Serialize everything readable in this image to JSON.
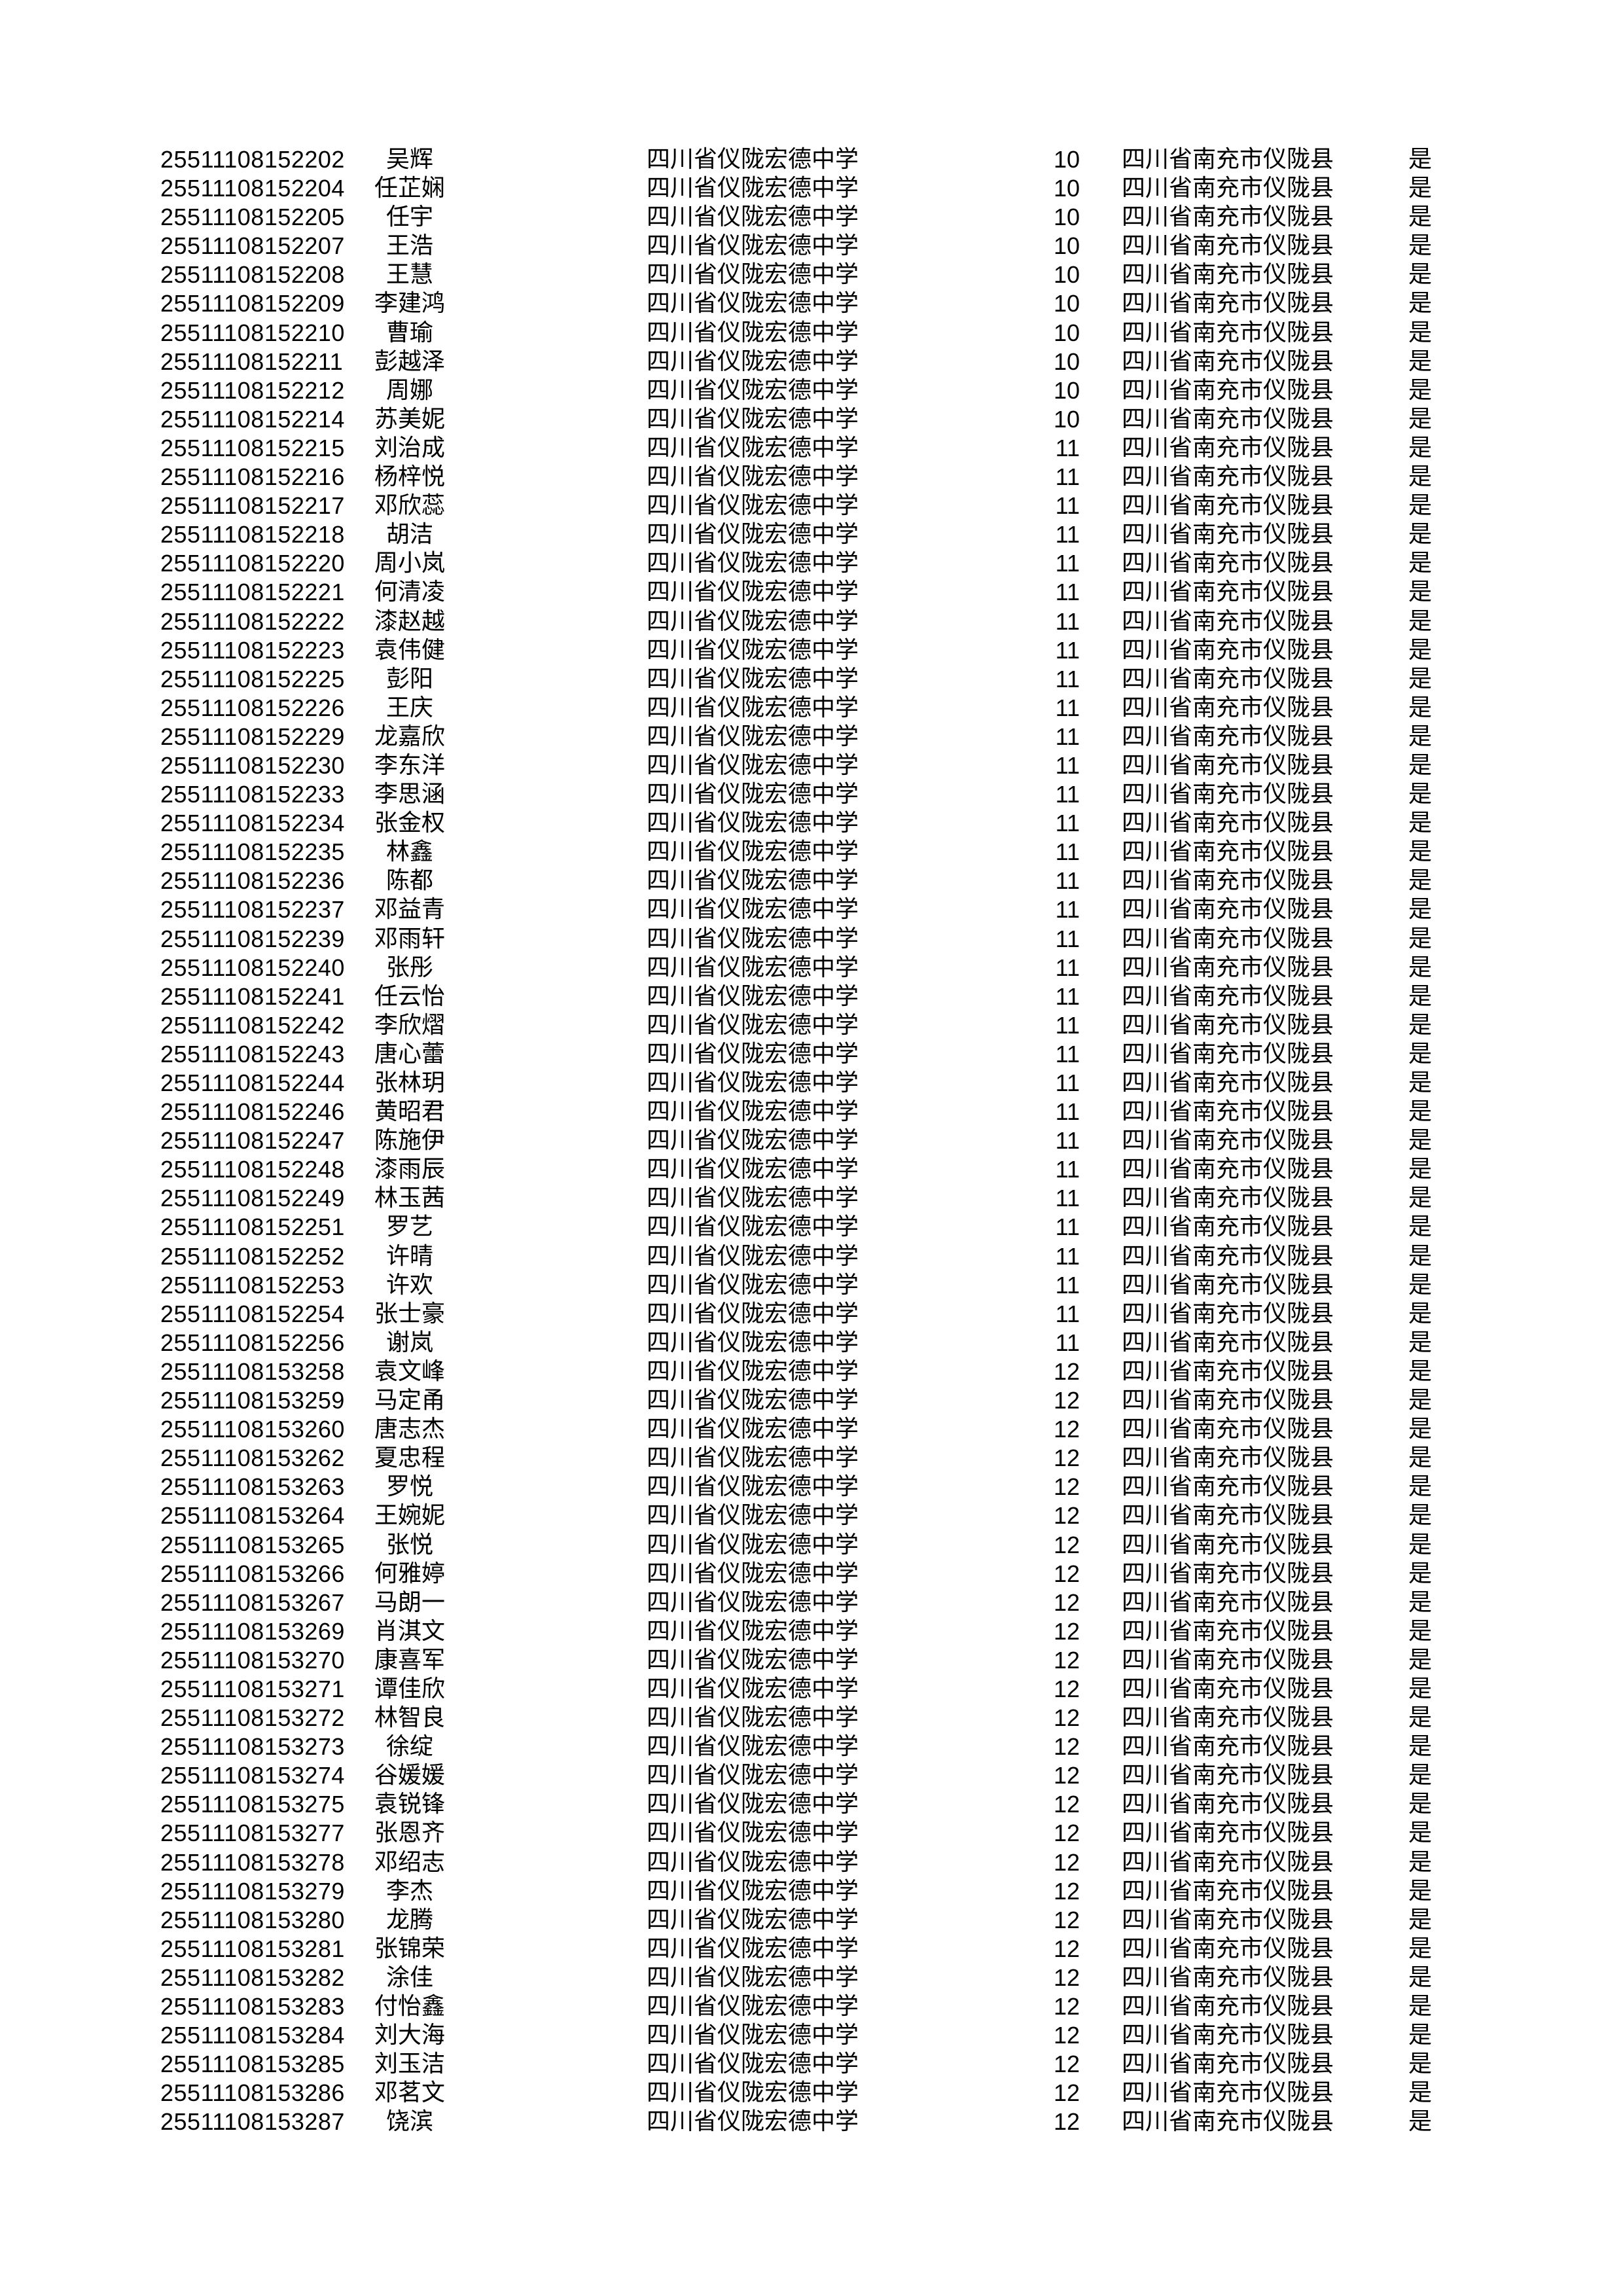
{
  "document": {
    "school": "四川省仪陇宏德中学",
    "region": "四川省南充市仪陇县",
    "confirm_flag": "是",
    "text_color": "#000000",
    "background_color": "#ffffff",
    "rows": [
      {
        "id": "25511108152202",
        "name": "吴辉",
        "grade": "10"
      },
      {
        "id": "25511108152204",
        "name": "任芷娴",
        "grade": "10"
      },
      {
        "id": "25511108152205",
        "name": "任宇",
        "grade": "10"
      },
      {
        "id": "25511108152207",
        "name": "王浩",
        "grade": "10"
      },
      {
        "id": "25511108152208",
        "name": "王慧",
        "grade": "10"
      },
      {
        "id": "25511108152209",
        "name": "李建鸿",
        "grade": "10"
      },
      {
        "id": "25511108152210",
        "name": "曹瑜",
        "grade": "10"
      },
      {
        "id": "25511108152211",
        "name": "彭越泽",
        "grade": "10"
      },
      {
        "id": "25511108152212",
        "name": "周娜",
        "grade": "10"
      },
      {
        "id": "25511108152214",
        "name": "苏美妮",
        "grade": "10"
      },
      {
        "id": "25511108152215",
        "name": "刘治成",
        "grade": "11"
      },
      {
        "id": "25511108152216",
        "name": "杨梓悦",
        "grade": "11"
      },
      {
        "id": "25511108152217",
        "name": "邓欣蕊",
        "grade": "11"
      },
      {
        "id": "25511108152218",
        "name": "胡洁",
        "grade": "11"
      },
      {
        "id": "25511108152220",
        "name": "周小岚",
        "grade": "11"
      },
      {
        "id": "25511108152221",
        "name": "何清凌",
        "grade": "11"
      },
      {
        "id": "25511108152222",
        "name": "漆赵越",
        "grade": "11"
      },
      {
        "id": "25511108152223",
        "name": "袁伟健",
        "grade": "11"
      },
      {
        "id": "25511108152225",
        "name": "彭阳",
        "grade": "11"
      },
      {
        "id": "25511108152226",
        "name": "王庆",
        "grade": "11"
      },
      {
        "id": "25511108152229",
        "name": "龙嘉欣",
        "grade": "11"
      },
      {
        "id": "25511108152230",
        "name": "李东洋",
        "grade": "11"
      },
      {
        "id": "25511108152233",
        "name": "李思涵",
        "grade": "11"
      },
      {
        "id": "25511108152234",
        "name": "张金权",
        "grade": "11"
      },
      {
        "id": "25511108152235",
        "name": "林鑫",
        "grade": "11"
      },
      {
        "id": "25511108152236",
        "name": "陈都",
        "grade": "11"
      },
      {
        "id": "25511108152237",
        "name": "邓益青",
        "grade": "11"
      },
      {
        "id": "25511108152239",
        "name": "邓雨轩",
        "grade": "11"
      },
      {
        "id": "25511108152240",
        "name": "张彤",
        "grade": "11"
      },
      {
        "id": "25511108152241",
        "name": "任云怡",
        "grade": "11"
      },
      {
        "id": "25511108152242",
        "name": "李欣熠",
        "grade": "11"
      },
      {
        "id": "25511108152243",
        "name": "唐心蕾",
        "grade": "11"
      },
      {
        "id": "25511108152244",
        "name": "张林玥",
        "grade": "11"
      },
      {
        "id": "25511108152246",
        "name": "黄昭君",
        "grade": "11"
      },
      {
        "id": "25511108152247",
        "name": "陈施伊",
        "grade": "11"
      },
      {
        "id": "25511108152248",
        "name": "漆雨辰",
        "grade": "11"
      },
      {
        "id": "25511108152249",
        "name": "林玉茜",
        "grade": "11"
      },
      {
        "id": "25511108152251",
        "name": "罗艺",
        "grade": "11"
      },
      {
        "id": "25511108152252",
        "name": "许晴",
        "grade": "11"
      },
      {
        "id": "25511108152253",
        "name": "许欢",
        "grade": "11"
      },
      {
        "id": "25511108152254",
        "name": "张士豪",
        "grade": "11"
      },
      {
        "id": "25511108152256",
        "name": "谢岚",
        "grade": "11"
      },
      {
        "id": "25511108153258",
        "name": "袁文峰",
        "grade": "12"
      },
      {
        "id": "25511108153259",
        "name": "马定甬",
        "grade": "12"
      },
      {
        "id": "25511108153260",
        "name": "唐志杰",
        "grade": "12"
      },
      {
        "id": "25511108153262",
        "name": "夏忠程",
        "grade": "12"
      },
      {
        "id": "25511108153263",
        "name": "罗悦",
        "grade": "12"
      },
      {
        "id": "25511108153264",
        "name": "王婉妮",
        "grade": "12"
      },
      {
        "id": "25511108153265",
        "name": "张悦",
        "grade": "12"
      },
      {
        "id": "25511108153266",
        "name": "何雅婷",
        "grade": "12"
      },
      {
        "id": "25511108153267",
        "name": "马朗一",
        "grade": "12"
      },
      {
        "id": "25511108153269",
        "name": "肖淇文",
        "grade": "12"
      },
      {
        "id": "25511108153270",
        "name": "康喜军",
        "grade": "12"
      },
      {
        "id": "25511108153271",
        "name": "谭佳欣",
        "grade": "12"
      },
      {
        "id": "25511108153272",
        "name": "林智良",
        "grade": "12"
      },
      {
        "id": "25511108153273",
        "name": "徐绽",
        "grade": "12"
      },
      {
        "id": "25511108153274",
        "name": "谷媛媛",
        "grade": "12"
      },
      {
        "id": "25511108153275",
        "name": "袁锐锋",
        "grade": "12"
      },
      {
        "id": "25511108153277",
        "name": "张恩齐",
        "grade": "12"
      },
      {
        "id": "25511108153278",
        "name": "邓绍志",
        "grade": "12"
      },
      {
        "id": "25511108153279",
        "name": "李杰",
        "grade": "12"
      },
      {
        "id": "25511108153280",
        "name": "龙腾",
        "grade": "12"
      },
      {
        "id": "25511108153281",
        "name": "张锦荣",
        "grade": "12"
      },
      {
        "id": "25511108153282",
        "name": "涂佳",
        "grade": "12"
      },
      {
        "id": "25511108153283",
        "name": "付怡鑫",
        "grade": "12"
      },
      {
        "id": "25511108153284",
        "name": "刘大海",
        "grade": "12"
      },
      {
        "id": "25511108153285",
        "name": "刘玉洁",
        "grade": "12"
      },
      {
        "id": "25511108153286",
        "name": "邓茗文",
        "grade": "12"
      },
      {
        "id": "25511108153287",
        "name": "饶滨",
        "grade": "12"
      }
    ]
  }
}
